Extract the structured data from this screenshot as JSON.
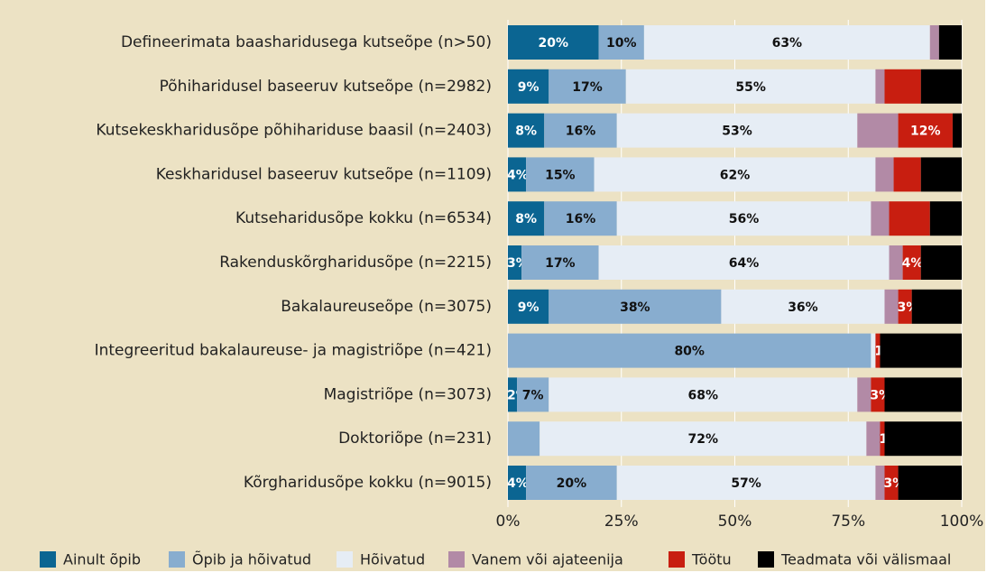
{
  "chart_data": {
    "type": "stacked-barh",
    "categories": [
      "Defineerimata baasharidusega kutseõpe (n>50)",
      "Põhiharidusel baseeruv kutseõpe (n=2982)",
      "Kutsekeskharidusõpe põhihariduse baasil (n=2403)",
      "Keskharidusel baseeruv kutseõpe (n=1109)",
      "Kutseharidusõpe kokku (n=6534)",
      "Rakenduskõrgharidusõpe (n=2215)",
      "Bakalaureuseõpe (n=3075)",
      "Integreeritud bakalaureuse- ja magistriõpe (n=421)",
      "Magistriõpe (n=3073)",
      "Doktoriõpe (n=231)",
      "Kõrgharidusõpe kokku (n=9015)"
    ],
    "series": [
      {
        "name": "Ainult õpib",
        "color": "#0b6592",
        "values": [
          20,
          9,
          8,
          4,
          8,
          3,
          9,
          0,
          2,
          0,
          4
        ],
        "value_labels": [
          "20%",
          "9%",
          "8%",
          "4%",
          "8%",
          "3%",
          "9%",
          null,
          "2%",
          null,
          "4%"
        ]
      },
      {
        "name": "Õpib ja hõivatud",
        "color": "#88adcf",
        "values": [
          10,
          17,
          16,
          15,
          16,
          17,
          38,
          80,
          7,
          7,
          20
        ],
        "value_labels": [
          "10%",
          "17%",
          "16%",
          "15%",
          "16%",
          "17%",
          "38%",
          "80%",
          "7%",
          null,
          "20%"
        ]
      },
      {
        "name": "Hõivatud",
        "color": "#e6edf5",
        "values": [
          63,
          55,
          53,
          62,
          56,
          64,
          36,
          1,
          68,
          72,
          57
        ],
        "value_labels": [
          "63%",
          "55%",
          "53%",
          "62%",
          "56%",
          "64%",
          "36%",
          null,
          "68%",
          "72%",
          "57%"
        ]
      },
      {
        "name": "Vanem või ajateenija",
        "color": "#b28aa6",
        "values": [
          2,
          2,
          9,
          4,
          4,
          3,
          3,
          0,
          3,
          3,
          2
        ],
        "value_labels": [
          null,
          null,
          null,
          null,
          null,
          null,
          null,
          null,
          null,
          null,
          null
        ]
      },
      {
        "name": "Töötu",
        "color": "#c81e10",
        "values": [
          0,
          8,
          12,
          6,
          9,
          4,
          3,
          1,
          3,
          1,
          3
        ],
        "value_labels": [
          null,
          null,
          "12%",
          null,
          null,
          "4%",
          "3%",
          "1%",
          "3%",
          "1%",
          "3%"
        ]
      },
      {
        "name": "Teadmata või välismaal",
        "color": "#000000",
        "values": [
          5,
          9,
          2,
          9,
          7,
          9,
          11,
          18,
          17,
          17,
          14
        ],
        "value_labels": [
          null,
          null,
          null,
          null,
          null,
          null,
          null,
          null,
          null,
          null,
          null
        ]
      }
    ],
    "xlim": [
      0,
      100
    ],
    "xticks": [
      {
        "value": 0,
        "label": "0%"
      },
      {
        "value": 25,
        "label": "25%"
      },
      {
        "value": 50,
        "label": "50%"
      },
      {
        "value": 75,
        "label": "75%"
      },
      {
        "value": 100,
        "label": "100%"
      }
    ],
    "grid": true,
    "legend": "bottom"
  }
}
